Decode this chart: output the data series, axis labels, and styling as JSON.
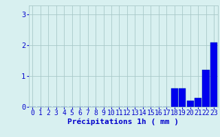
{
  "hours": [
    0,
    1,
    2,
    3,
    4,
    5,
    6,
    7,
    8,
    9,
    10,
    11,
    12,
    13,
    14,
    15,
    16,
    17,
    18,
    19,
    20,
    21,
    22,
    23
  ],
  "precipitation": [
    0,
    0,
    0,
    0,
    0,
    0,
    0,
    0,
    0,
    0,
    0,
    0,
    0,
    0,
    0,
    0,
    0,
    0,
    0.6,
    0.6,
    0.2,
    0.3,
    1.2,
    2.1
  ],
  "bar_color": "#0000ee",
  "bar_edge_color": "#0033aa",
  "background_color": "#d8f0f0",
  "grid_color": "#a8c8c8",
  "axis_label_color": "#0000cc",
  "tick_color": "#0000cc",
  "xlabel": "Précipitations 1h ( mm )",
  "ylim": [
    0,
    3.3
  ],
  "yticks": [
    0,
    1,
    2,
    3
  ],
  "xlim": [
    -0.5,
    23.5
  ],
  "xlabel_fontsize": 8,
  "tick_fontsize": 7
}
